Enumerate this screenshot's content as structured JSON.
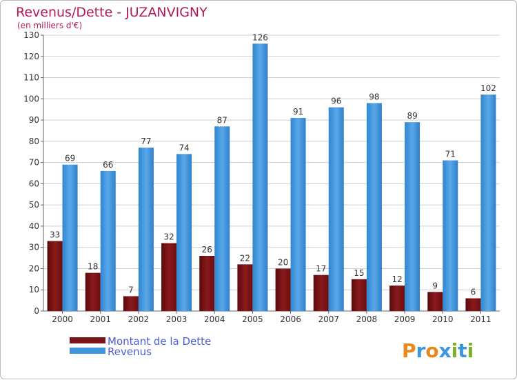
{
  "chart_data": {
    "type": "bar",
    "title": "Revenus/Dette - JUZANVIGNY",
    "subtitle": "(en milliers d'€)",
    "categories": [
      "2000",
      "2001",
      "2002",
      "2003",
      "2004",
      "2005",
      "2006",
      "2007",
      "2008",
      "2009",
      "2010",
      "2011"
    ],
    "series": [
      {
        "name": "Montant de la Dette",
        "values": [
          33,
          18,
          7,
          32,
          26,
          22,
          20,
          17,
          15,
          12,
          9,
          6
        ],
        "color": "#7a1416"
      },
      {
        "name": "Revenus",
        "values": [
          69,
          66,
          77,
          74,
          87,
          126,
          91,
          96,
          98,
          89,
          71,
          102
        ],
        "color": "#3d96dd"
      }
    ],
    "ylim": [
      0,
      130
    ],
    "yticks": [
      0,
      10,
      20,
      30,
      40,
      50,
      60,
      70,
      80,
      90,
      100,
      110,
      120,
      130
    ],
    "grid": true,
    "legend_position": "bottom-left"
  },
  "logo": {
    "letters": [
      "P",
      "r",
      "o",
      "x",
      "i",
      "t",
      "i"
    ],
    "colors": [
      "#e8891c",
      "#3d96dd",
      "#e8891c",
      "#3d96dd",
      "#7bb22a",
      "#3d96dd",
      "#7bb22a"
    ]
  }
}
